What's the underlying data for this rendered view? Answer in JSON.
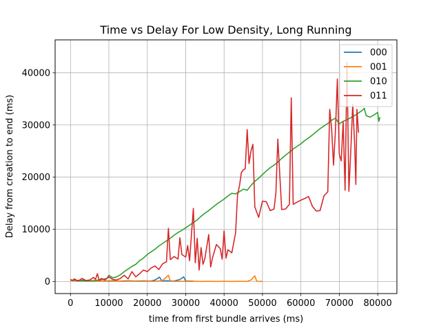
{
  "chart_data": {
    "type": "line",
    "title": "Time vs Delay For Low Density, Long Running",
    "xlabel": "time from first bundle arrives (ms)",
    "ylabel": "Delay from creation to end (ms)",
    "xlim": [
      -4000,
      85000
    ],
    "ylim": [
      -2300,
      46300
    ],
    "xticks": [
      0,
      10000,
      20000,
      30000,
      40000,
      50000,
      60000,
      70000,
      80000
    ],
    "yticks": [
      0,
      10000,
      20000,
      30000,
      40000
    ],
    "grid": true,
    "legend_position": "top-right",
    "series": [
      {
        "name": "000",
        "color": "#1f77b4",
        "points": [
          [
            0,
            300
          ],
          [
            1500,
            200
          ],
          [
            3000,
            250
          ],
          [
            5000,
            150
          ],
          [
            7000,
            200
          ],
          [
            9000,
            100
          ],
          [
            11000,
            150
          ],
          [
            13000,
            100
          ],
          [
            15000,
            150
          ],
          [
            17000,
            100
          ],
          [
            19000,
            120
          ],
          [
            21000,
            100
          ],
          [
            22000,
            300
          ],
          [
            23200,
            850
          ],
          [
            23800,
            100
          ],
          [
            25000,
            150
          ],
          [
            27000,
            100
          ],
          [
            28500,
            400
          ],
          [
            29500,
            900
          ],
          [
            30000,
            100
          ],
          [
            32000,
            100
          ]
        ]
      },
      {
        "name": "001",
        "color": "#ff7f0e",
        "points": [
          [
            0,
            200
          ],
          [
            2000,
            100
          ],
          [
            4000,
            150
          ],
          [
            6000,
            50
          ],
          [
            8000,
            100
          ],
          [
            10000,
            50
          ],
          [
            12000,
            100
          ],
          [
            14000,
            50
          ],
          [
            16000,
            80
          ],
          [
            18000,
            50
          ],
          [
            20000,
            60
          ],
          [
            22000,
            40
          ],
          [
            24000,
            200
          ],
          [
            25500,
            1200
          ],
          [
            26000,
            40
          ],
          [
            28000,
            60
          ],
          [
            30000,
            30
          ],
          [
            32000,
            60
          ],
          [
            34000,
            30
          ],
          [
            36000,
            50
          ],
          [
            38000,
            30
          ],
          [
            40000,
            50
          ],
          [
            42000,
            30
          ],
          [
            44000,
            50
          ],
          [
            46000,
            30
          ],
          [
            47000,
            300
          ],
          [
            48000,
            1100
          ],
          [
            48500,
            50
          ],
          [
            50000,
            30
          ]
        ]
      },
      {
        "name": "010",
        "color": "#2ca02c",
        "points": [
          [
            0,
            300
          ],
          [
            2000,
            200
          ],
          [
            4000,
            100
          ],
          [
            6000,
            150
          ],
          [
            8000,
            400
          ],
          [
            9500,
            600
          ],
          [
            10000,
            1200
          ],
          [
            11000,
            700
          ],
          [
            12000,
            900
          ],
          [
            13000,
            1300
          ],
          [
            14000,
            1900
          ],
          [
            15000,
            2400
          ],
          [
            16000,
            2900
          ],
          [
            17000,
            3300
          ],
          [
            18000,
            4000
          ],
          [
            19000,
            4500
          ],
          [
            20000,
            5200
          ],
          [
            21000,
            5700
          ],
          [
            22000,
            6200
          ],
          [
            23000,
            6800
          ],
          [
            24000,
            7300
          ],
          [
            25000,
            7800
          ],
          [
            26000,
            8300
          ],
          [
            27000,
            8900
          ],
          [
            28000,
            9400
          ],
          [
            29000,
            9800
          ],
          [
            30000,
            10300
          ],
          [
            31000,
            10800
          ],
          [
            32000,
            11300
          ],
          [
            33000,
            11800
          ],
          [
            34000,
            12500
          ],
          [
            35000,
            13100
          ],
          [
            36000,
            13600
          ],
          [
            37000,
            14200
          ],
          [
            38000,
            14800
          ],
          [
            39000,
            15300
          ],
          [
            40000,
            15800
          ],
          [
            41000,
            16400
          ],
          [
            42000,
            16900
          ],
          [
            43000,
            16800
          ],
          [
            44000,
            17200
          ],
          [
            45000,
            17700
          ],
          [
            46000,
            17500
          ],
          [
            47000,
            18400
          ],
          [
            48000,
            19200
          ],
          [
            49000,
            19800
          ],
          [
            50000,
            20500
          ],
          [
            51000,
            21200
          ],
          [
            52000,
            21800
          ],
          [
            53000,
            22300
          ],
          [
            54000,
            22900
          ],
          [
            55000,
            23600
          ],
          [
            56000,
            24200
          ],
          [
            57000,
            24800
          ],
          [
            58000,
            25400
          ],
          [
            59000,
            25900
          ],
          [
            60000,
            26400
          ],
          [
            61000,
            27000
          ],
          [
            62000,
            27500
          ],
          [
            63000,
            28100
          ],
          [
            64000,
            28700
          ],
          [
            65000,
            29300
          ],
          [
            66000,
            29800
          ],
          [
            67000,
            30300
          ],
          [
            68000,
            30900
          ],
          [
            69000,
            31300
          ],
          [
            70000,
            30200
          ],
          [
            71000,
            30700
          ],
          [
            72000,
            31000
          ],
          [
            73000,
            31400
          ],
          [
            74000,
            31800
          ],
          [
            75000,
            32300
          ],
          [
            76000,
            32800
          ],
          [
            76500,
            33200
          ],
          [
            77000,
            31800
          ],
          [
            78000,
            31500
          ],
          [
            79000,
            31900
          ],
          [
            80000,
            32400
          ],
          [
            80300,
            30700
          ],
          [
            80600,
            31500
          ]
        ]
      },
      {
        "name": "011",
        "color": "#d62728",
        "points": [
          [
            0,
            400
          ],
          [
            500,
            200
          ],
          [
            1000,
            500
          ],
          [
            2000,
            100
          ],
          [
            3000,
            600
          ],
          [
            4000,
            200
          ],
          [
            5000,
            300
          ],
          [
            6000,
            800
          ],
          [
            6500,
            400
          ],
          [
            7000,
            1500
          ],
          [
            7500,
            200
          ],
          [
            8000,
            600
          ],
          [
            9000,
            300
          ],
          [
            10000,
            900
          ],
          [
            11000,
            400
          ],
          [
            12000,
            300
          ],
          [
            13000,
            600
          ],
          [
            14000,
            1200
          ],
          [
            15000,
            500
          ],
          [
            16000,
            1900
          ],
          [
            17000,
            900
          ],
          [
            18000,
            1500
          ],
          [
            19000,
            2200
          ],
          [
            20000,
            1900
          ],
          [
            21000,
            2600
          ],
          [
            22000,
            3000
          ],
          [
            23000,
            2300
          ],
          [
            24000,
            3400
          ],
          [
            25000,
            3800
          ],
          [
            25500,
            10200
          ],
          [
            26000,
            4200
          ],
          [
            27000,
            4800
          ],
          [
            28000,
            4300
          ],
          [
            28500,
            8400
          ],
          [
            29000,
            5200
          ],
          [
            30000,
            4700
          ],
          [
            30500,
            6900
          ],
          [
            31000,
            4000
          ],
          [
            32000,
            14000
          ],
          [
            32500,
            3600
          ],
          [
            33000,
            8300
          ],
          [
            33500,
            2200
          ],
          [
            34000,
            6500
          ],
          [
            34500,
            3300
          ],
          [
            35000,
            4400
          ],
          [
            36000,
            9000
          ],
          [
            36500,
            2800
          ],
          [
            37000,
            4600
          ],
          [
            38000,
            7100
          ],
          [
            39000,
            6300
          ],
          [
            39500,
            4300
          ],
          [
            40000,
            9700
          ],
          [
            40500,
            4500
          ],
          [
            41000,
            6100
          ],
          [
            42000,
            5500
          ],
          [
            43000,
            9300
          ],
          [
            43500,
            16600
          ],
          [
            44000,
            18300
          ],
          [
            44500,
            20900
          ],
          [
            45000,
            21400
          ],
          [
            45500,
            21600
          ],
          [
            46000,
            29100
          ],
          [
            46500,
            22600
          ],
          [
            47000,
            25000
          ],
          [
            47500,
            26300
          ],
          [
            48000,
            14300
          ],
          [
            48500,
            13300
          ],
          [
            49000,
            12300
          ],
          [
            50000,
            15400
          ],
          [
            51000,
            15300
          ],
          [
            52000,
            13600
          ],
          [
            53000,
            13900
          ],
          [
            53500,
            17000
          ],
          [
            54000,
            27300
          ],
          [
            55000,
            13800
          ],
          [
            56000,
            13900
          ],
          [
            57000,
            14800
          ],
          [
            57500,
            35200
          ],
          [
            58000,
            14800
          ],
          [
            59000,
            15200
          ],
          [
            60000,
            15600
          ],
          [
            61000,
            15900
          ],
          [
            62000,
            16300
          ],
          [
            63000,
            14400
          ],
          [
            64000,
            13500
          ],
          [
            65000,
            13600
          ],
          [
            66000,
            16400
          ],
          [
            67000,
            17200
          ],
          [
            67500,
            33000
          ],
          [
            68000,
            29200
          ],
          [
            68500,
            22300
          ],
          [
            69000,
            28900
          ],
          [
            69500,
            38800
          ],
          [
            70000,
            24400
          ],
          [
            70500,
            23100
          ],
          [
            71000,
            30600
          ],
          [
            71500,
            17500
          ],
          [
            72000,
            42000
          ],
          [
            72500,
            17300
          ],
          [
            73000,
            25100
          ],
          [
            73500,
            34000
          ],
          [
            74000,
            26200
          ],
          [
            74300,
            18600
          ],
          [
            74600,
            33000
          ],
          [
            75000,
            28500
          ]
        ]
      }
    ]
  }
}
